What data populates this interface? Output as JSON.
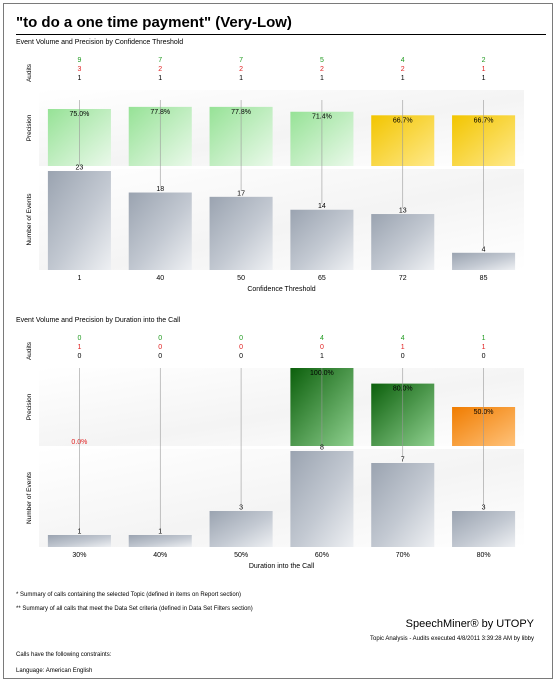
{
  "report": {
    "title": "\"to do a one time payment\" (Very-Low)",
    "footnote_1": "* Summary of calls containing the selected Topic (defined in items on Report section)",
    "footnote_2": "** Summary of all calls that meet the Data Set criteria (defined in Data Set Filters section)",
    "brand": "SpeechMiner® by UTOPY",
    "executed_line": "Topic Analysis - Audits executed 4/8/2011 3:39:28 AM by libby",
    "constraints_line": "Calls have the following constraints:",
    "language_line": "Language: American English"
  },
  "colors": {
    "audit_green": "#1f9a1f",
    "audit_red": "#e02020",
    "audit_black": "#000000",
    "precision_label_red": "#e02020"
  },
  "chart_data": [
    {
      "type": "bar",
      "title": "Event Volume and Precision by Confidence Threshold",
      "xlabel": "Confidence Threshold",
      "categories": [
        "1",
        "40",
        "50",
        "65",
        "72",
        "85"
      ],
      "audits_label": "Audits",
      "audits": {
        "green": [
          9,
          7,
          7,
          5,
          4,
          2
        ],
        "red": [
          3,
          2,
          2,
          2,
          2,
          1
        ],
        "black": [
          1,
          1,
          1,
          1,
          1,
          1
        ]
      },
      "precision_label": "Precision",
      "precision": [
        75.0,
        77.8,
        77.8,
        71.4,
        66.7,
        66.7
      ],
      "precision_labels": [
        "75.0%",
        "77.8%",
        "77.8%",
        "71.4%",
        "66.7%",
        "66.7%"
      ],
      "precision_colors": [
        "light-green",
        "light-green",
        "light-green",
        "light-green",
        "yellow",
        "yellow"
      ],
      "events_label": "Number of Events",
      "events": [
        23,
        18,
        17,
        14,
        13,
        4
      ],
      "events_labels": [
        "23",
        "18",
        "17",
        "14",
        "13",
        "4"
      ]
    },
    {
      "type": "bar",
      "title": "Event Volume and Precision by Duration into the Call",
      "xlabel": "Duration into the Call",
      "categories": [
        "30%",
        "40%",
        "50%",
        "60%",
        "70%",
        "80%"
      ],
      "audits_label": "Audits",
      "audits": {
        "green": [
          0,
          0,
          0,
          4,
          4,
          1
        ],
        "red": [
          1,
          0,
          0,
          0,
          1,
          1
        ],
        "black": [
          0,
          0,
          0,
          1,
          0,
          0
        ]
      },
      "precision_label": "Precision",
      "precision": [
        0.0,
        null,
        null,
        100.0,
        80.0,
        50.0
      ],
      "precision_labels": [
        "0.0%",
        "",
        "",
        "100.0%",
        "80.0%",
        "50.0%"
      ],
      "precision_colors": [
        "none",
        "none",
        "none",
        "dark-green",
        "dark-green",
        "orange"
      ],
      "events_label": "Number of Events",
      "events": [
        1,
        1,
        3,
        8,
        7,
        3
      ],
      "events_labels": [
        "1",
        "1",
        "3",
        "8",
        "7",
        "3"
      ]
    }
  ]
}
